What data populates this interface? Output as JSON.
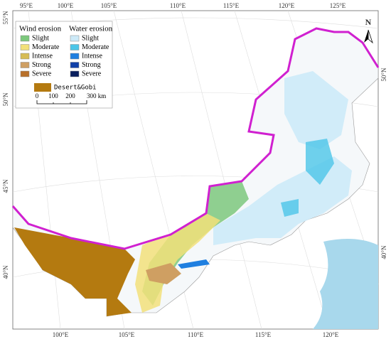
{
  "map": {
    "top_labels": [
      "95°E",
      "100°E",
      "105°E",
      "110°E",
      "115°E",
      "120°E",
      "125°E"
    ],
    "bottom_labels": [
      "100°E",
      "105°E",
      "110°E",
      "115°E",
      "120°E"
    ],
    "left_labels": [
      "55°N",
      "50°N",
      "45°N",
      "40°N"
    ],
    "right_labels": [
      "50°N",
      "40°N"
    ],
    "north": "N",
    "legend": {
      "wind_erosion": {
        "title": "Wind erosion",
        "items": [
          {
            "name": "Slight",
            "color": "#7cc87c"
          },
          {
            "name": "Moderate",
            "color": "#f2e07a"
          },
          {
            "name": "Intense",
            "color": "#d6bc55"
          },
          {
            "name": "Strong",
            "color": "#cf9f62"
          },
          {
            "name": "Severe",
            "color": "#b8702a"
          }
        ]
      },
      "water_erosion": {
        "title": "Water erosion",
        "items": [
          {
            "name": "Slight",
            "color": "#cdeaf8"
          },
          {
            "name": "Moderate",
            "color": "#4cc6e8"
          },
          {
            "name": "Intense",
            "color": "#1f7fe0"
          },
          {
            "name": "Strong",
            "color": "#1040a8"
          },
          {
            "name": "Severe",
            "color": "#0a1f5e"
          }
        ]
      },
      "desert": {
        "name": "Desert&Gobi",
        "color": "#b47a10"
      },
      "scale": [
        "0",
        "100",
        "200",
        "300 km"
      ]
    }
  }
}
